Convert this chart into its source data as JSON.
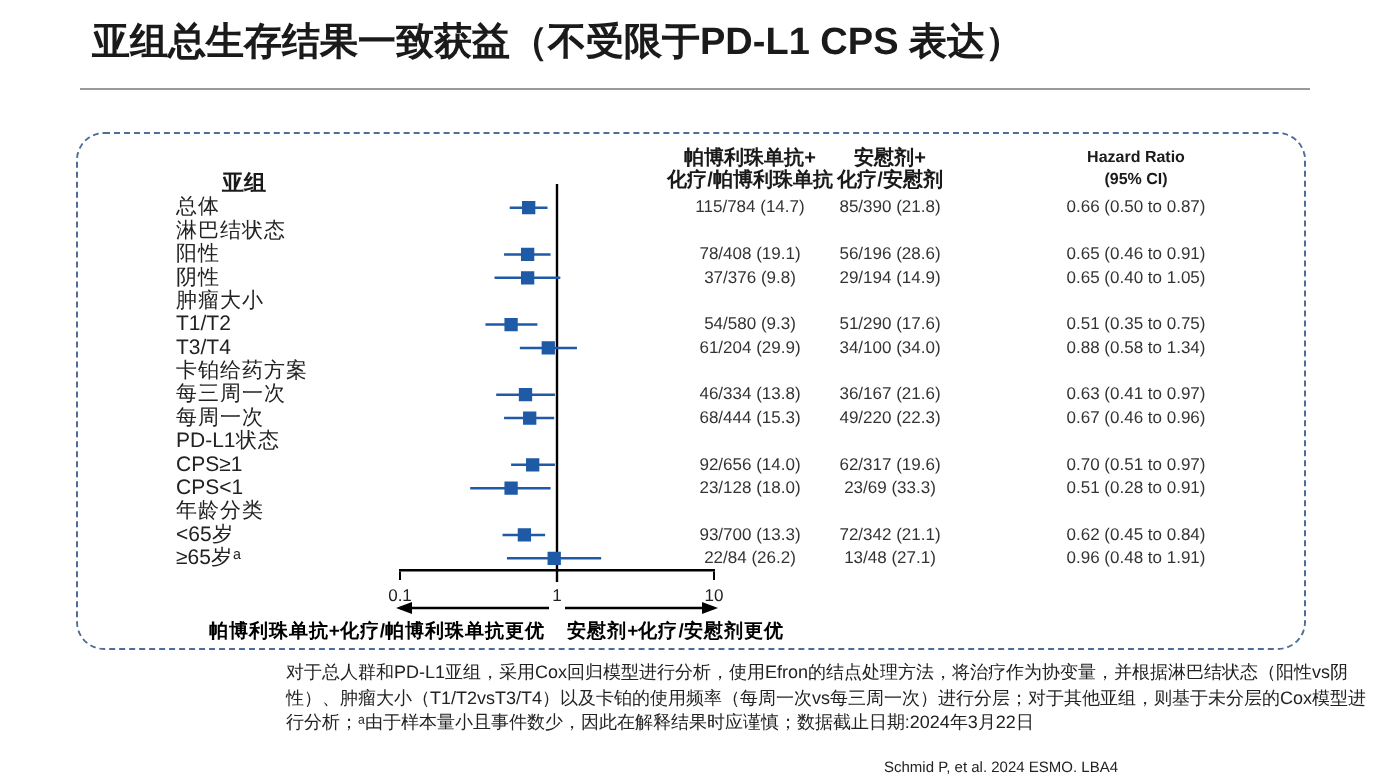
{
  "chart_data": {
    "type": "scatter",
    "orientation": "horizontal",
    "title": "亚组总生存结果一致获益（不受限于PD-L1 CPS 表达）",
    "ylabel": "亚组",
    "categories": [
      "总体",
      "淋巴结状态",
      "阳性",
      "阴性",
      "肿瘤大小",
      "T1/T2",
      "T3/T4",
      "卡铂给药方案",
      "每三周一次",
      "每周一次",
      "PD-L1状态",
      "CPS≥1",
      "CPS<1",
      "年龄分类",
      "<65岁",
      "≥65岁ᵃ"
    ],
    "values": [
      0.66,
      null,
      0.65,
      0.65,
      null,
      0.51,
      0.88,
      null,
      0.63,
      0.67,
      null,
      0.7,
      0.51,
      null,
      0.62,
      0.96
    ],
    "errors": [
      [
        0.5,
        0.87
      ],
      null,
      [
        0.46,
        0.91
      ],
      [
        0.4,
        1.05
      ],
      null,
      [
        0.35,
        0.75
      ],
      [
        0.58,
        1.34
      ],
      null,
      [
        0.41,
        0.97
      ],
      [
        0.46,
        0.96
      ],
      null,
      [
        0.51,
        0.97
      ],
      [
        0.28,
        0.91
      ],
      null,
      [
        0.45,
        0.84
      ],
      [
        0.48,
        1.91
      ]
    ],
    "value_labels": [
      "0.66 (0.50 to 0.87)",
      null,
      "0.65 (0.46 to 0.91)",
      "0.65 (0.40 to 1.05)",
      null,
      "0.51 (0.35 to 0.75)",
      "0.88 (0.58 to 1.34)",
      null,
      "0.63 (0.41 to 0.97)",
      "0.67 (0.46 to 0.96)",
      null,
      "0.70 (0.51 to 0.97)",
      "0.51 (0.28 to 0.91)",
      null,
      "0.62 (0.45 to 0.84)",
      "0.96 (0.48 to 1.91)"
    ],
    "color": "#1f5aa6",
    "marker": "square",
    "log": "x",
    "xlim": [
      0.1,
      10
    ],
    "xticks": [
      0.1,
      1,
      10
    ],
    "ref_lines": [
      {
        "axis": "x",
        "value": 1,
        "color": "#000000"
      }
    ],
    "annotations": [
      "帕博利珠单抗+\n化疗/帕博利珠单抗",
      "安慰剂+\n化疗/安慰剂",
      "Hazard Ratio\n(95% CI)",
      "115/784 (14.7)",
      "85/390 (21.8)",
      "78/408 (19.1)",
      "56/196 (28.6)",
      "37/376 (9.8)",
      "29/194 (14.9)",
      "54/580 (9.3)",
      "51/290 (17.6)",
      "61/204 (29.9)",
      "34/100 (34.0)",
      "46/334 (13.8)",
      "36/167 (21.6)",
      "68/444 (15.3)",
      "49/220 (22.3)",
      "92/656 (14.0)",
      "62/317 (19.6)",
      "23/128 (18.0)",
      "23/69 (33.3)",
      "93/700 (13.3)",
      "72/342 (21.1)",
      "22/84 (26.2)",
      "13/48 (27.1)",
      "帕博利珠单抗+化疗/帕博利珠单抗更优",
      "安慰剂+化疗/安慰剂更优",
      "对于总人群和PD-L1亚组，采用Cox回归模型进行分析，使用Efron的结点处理方法，将治疗作为协变量，并根据淋巴结状态（阳性vs阴性）、肿瘤大小（T1/T2vsT3/T4）以及卡铂的使用频率（每周一次vs每三周一次）进行分层；对于其他亚组，则基于未分层的Cox模型进行分析；ᵃ由于样本量小且事件数少，因此在解释结果时应谨慎；数据截止日期:2024年3月22日",
      "Schmid P, et al. 2024 ESMO. LBA4"
    ]
  }
}
